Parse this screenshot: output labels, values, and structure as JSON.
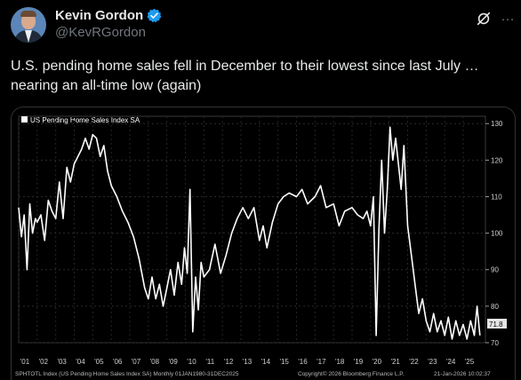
{
  "tweet": {
    "author_name": "Kevin Gordon",
    "author_handle": "@KevRGordon",
    "text": "U.S. pending home sales fell in December to their lowest since last July … nearing an all-time low (again)",
    "more_label": "…"
  },
  "colors": {
    "background": "#000000",
    "text": "#e7e9ea",
    "muted": "#71767b",
    "verified": "#1d9bf0",
    "series": "#ffffff"
  },
  "chart_data": {
    "type": "line",
    "legend": "US Pending Home Sales Index SA",
    "last_value_label": "71.8",
    "ylim": [
      70,
      132
    ],
    "yticks": [
      70,
      80,
      90,
      100,
      110,
      120,
      130
    ],
    "xlim": [
      2001.0,
      2026.2
    ],
    "xtick_labels": [
      "'01",
      "'02",
      "'03",
      "'04",
      "'05",
      "'06",
      "'07",
      "'08",
      "'09",
      "'10",
      "'11",
      "'12",
      "'13",
      "'14",
      "'15",
      "'16",
      "'17",
      "'18",
      "'19",
      "'20",
      "'21",
      "'22",
      "'23",
      "'24",
      "'25"
    ],
    "footer_left": "SPHTOTL Index (US Pending Home Sales Index SA) Monthly 01JAN1980-31DEC2025",
    "footer_mid": "Copyright© 2026 Bloomberg Finance L.P.",
    "footer_right": "21-Jan-2026 10:02:37",
    "series": [
      {
        "x": [
          2001.0,
          2001.15,
          2001.3,
          2001.45,
          2001.6,
          2001.75,
          2001.9,
          2002.0,
          2002.2,
          2002.4,
          2002.6,
          2002.8,
          2003.0,
          2003.2,
          2003.4,
          2003.6,
          2003.8,
          2004.0,
          2004.2,
          2004.4,
          2004.6,
          2004.8,
          2005.0,
          2005.2,
          2005.4,
          2005.6,
          2005.8,
          2006.0,
          2006.3,
          2006.6,
          2006.9,
          2007.2,
          2007.5,
          2007.8,
          2008.0,
          2008.2,
          2008.4,
          2008.6,
          2008.8,
          2009.0,
          2009.2,
          2009.4,
          2009.6,
          2009.8,
          2009.95,
          2010.1,
          2010.25,
          2010.4,
          2010.55,
          2010.7,
          2010.85,
          2011.0,
          2011.3,
          2011.6,
          2011.9,
          2012.2,
          2012.5,
          2012.8,
          2013.1,
          2013.4,
          2013.7,
          2014.0,
          2014.2,
          2014.4,
          2014.7,
          2015.0,
          2015.3,
          2015.6,
          2016.0,
          2016.3,
          2016.6,
          2017.0,
          2017.3,
          2017.6,
          2018.0,
          2018.3,
          2018.6,
          2019.0,
          2019.3,
          2019.6,
          2019.8,
          2020.0,
          2020.15,
          2020.3,
          2020.45,
          2020.6,
          2020.75,
          2020.9,
          2021.05,
          2021.2,
          2021.35,
          2021.5,
          2021.65,
          2021.8,
          2022.0,
          2022.2,
          2022.4,
          2022.6,
          2022.8,
          2023.0,
          2023.2,
          2023.4,
          2023.6,
          2023.8,
          2024.0,
          2024.2,
          2024.4,
          2024.6,
          2024.8,
          2025.0,
          2025.2,
          2025.4,
          2025.6,
          2025.75,
          2025.9
        ],
        "values": [
          107,
          99,
          105,
          90,
          108,
          100,
          104,
          103,
          105,
          98,
          109,
          106,
          104,
          114,
          104,
          118,
          114,
          119,
          121,
          123,
          126,
          123,
          127,
          126,
          121,
          124,
          117,
          113,
          110,
          106,
          103,
          99,
          93,
          85,
          82,
          88,
          82,
          86,
          80,
          85,
          90,
          83,
          92,
          86,
          96,
          89,
          112,
          73,
          88,
          79,
          92,
          88,
          90,
          97,
          89,
          94,
          100,
          104,
          107,
          104,
          107,
          98,
          102,
          96,
          103,
          108,
          110,
          111,
          110,
          112,
          108,
          110,
          113,
          107,
          108,
          102,
          106,
          107,
          105,
          104,
          106,
          102,
          110,
          72,
          101,
          120,
          100,
          112,
          129,
          120,
          126,
          119,
          112,
          124,
          102,
          94,
          86,
          78,
          82,
          76,
          73,
          78,
          73,
          76,
          72,
          77,
          71,
          76,
          72,
          75,
          71,
          76,
          72,
          80,
          72
        ]
      }
    ]
  }
}
